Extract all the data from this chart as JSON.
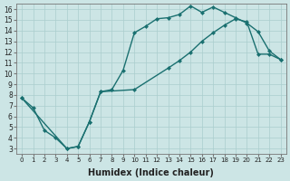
{
  "background_color": "#cce5e5",
  "grid_color": "#aacece",
  "line_color": "#1a7070",
  "marker": "D",
  "marker_size": 2.5,
  "line_width": 1.0,
  "xlabel": "Humidex (Indice chaleur)",
  "xlabel_fontsize": 7,
  "xlim": [
    -0.5,
    23.5
  ],
  "ylim": [
    2.5,
    16.5
  ],
  "xticks": [
    0,
    1,
    2,
    3,
    4,
    5,
    6,
    7,
    8,
    9,
    10,
    11,
    12,
    13,
    14,
    15,
    16,
    17,
    18,
    19,
    20,
    21,
    22,
    23
  ],
  "yticks": [
    3,
    4,
    5,
    6,
    7,
    8,
    9,
    10,
    11,
    12,
    13,
    14,
    15,
    16
  ],
  "curve1_x": [
    0,
    1,
    2,
    3,
    4,
    5,
    6,
    7,
    8,
    9,
    10,
    11,
    12,
    13,
    14,
    15,
    16,
    17,
    18,
    19,
    20,
    21,
    22,
    23
  ],
  "curve1_y": [
    7.7,
    6.8,
    4.7,
    4.0,
    3.0,
    3.2,
    5.5,
    8.3,
    8.5,
    10.3,
    13.8,
    14.4,
    15.1,
    15.2,
    15.5,
    16.3,
    15.7,
    16.2,
    15.7,
    15.2,
    14.7,
    13.9,
    12.1,
    11.3
  ],
  "curve2_x": [
    0,
    4,
    5,
    6,
    7,
    10,
    13,
    14,
    15,
    16,
    17,
    18,
    19,
    20,
    21,
    22,
    23
  ],
  "curve2_y": [
    7.7,
    3.0,
    3.2,
    5.5,
    8.3,
    8.5,
    10.5,
    11.2,
    12.0,
    13.0,
    13.8,
    14.5,
    15.1,
    14.8,
    11.8,
    11.8,
    11.3
  ]
}
